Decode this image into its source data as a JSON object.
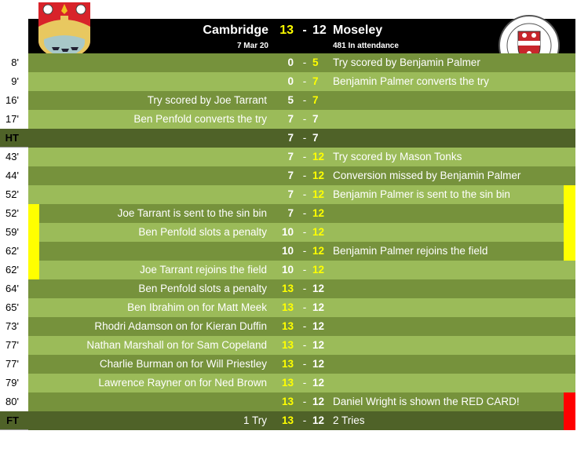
{
  "header": {
    "home_team": "Cambridge",
    "away_team": "Moseley",
    "home_score": "13",
    "away_score": "12",
    "dash": "-",
    "date": "7 Mar 20",
    "attendance": "481 In attendance",
    "home_logo": "Cambridge crest",
    "away_logo": "BIRMINGHAM MOSELEY RUGBY 1873"
  },
  "colors": {
    "dark": "#76923c",
    "light": "#9bbb59",
    "period": "#4f6228",
    "leader": "#ffff00",
    "yellow_card": "#ffff00",
    "red_card": "#ff0000"
  },
  "rows": [
    {
      "minute": "8'",
      "shade": "dark",
      "home_text": "",
      "home_score": "0",
      "away_score": "5",
      "away_text": "Try scored by Benjamin Palmer"
    },
    {
      "minute": "9'",
      "shade": "light",
      "home_text": "",
      "home_score": "0",
      "away_score": "7",
      "away_text": "Benjamin Palmer converts the try"
    },
    {
      "minute": "16'",
      "shade": "dark",
      "home_text": "Try scored by Joe Tarrant",
      "home_score": "5",
      "away_score": "7",
      "away_text": ""
    },
    {
      "minute": "17'",
      "shade": "light",
      "home_text": "Ben Penfold converts the try",
      "home_score": "7",
      "away_score": "7",
      "away_text": ""
    },
    {
      "minute": "HT",
      "shade": "period",
      "home_text": "",
      "home_score": "7",
      "away_score": "7",
      "away_text": ""
    },
    {
      "minute": "43'",
      "shade": "light",
      "home_text": "",
      "home_score": "7",
      "away_score": "12",
      "away_text": "Try scored by Mason Tonks"
    },
    {
      "minute": "44'",
      "shade": "dark",
      "home_text": "",
      "home_score": "7",
      "away_score": "12",
      "away_text": "Conversion missed by Benjamin Palmer"
    },
    {
      "minute": "52'",
      "shade": "light",
      "home_text": "",
      "home_score": "7",
      "away_score": "12",
      "away_text": "Benjamin Palmer is sent to the sin bin",
      "right_bar": "yellow"
    },
    {
      "minute": "52'",
      "shade": "dark",
      "home_text": "Joe Tarrant is sent to the sin bin",
      "home_score": "7",
      "away_score": "12",
      "away_text": "",
      "left_bar": "yellow",
      "right_bar": "yellow"
    },
    {
      "minute": "59'",
      "shade": "light",
      "home_text": "Ben Penfold slots a penalty",
      "home_score": "10",
      "away_score": "12",
      "away_text": "",
      "left_bar": "yellow",
      "right_bar": "yellow"
    },
    {
      "minute": "62'",
      "shade": "dark",
      "home_text": "",
      "home_score": "10",
      "away_score": "12",
      "away_text": "Benjamin Palmer rejoins the field",
      "left_bar": "yellow",
      "right_bar": "yellow"
    },
    {
      "minute": "62'",
      "shade": "light",
      "home_text": "Joe Tarrant rejoins the field",
      "home_score": "10",
      "away_score": "12",
      "away_text": "",
      "left_bar": "yellow"
    },
    {
      "minute": "64'",
      "shade": "dark",
      "home_text": "Ben Penfold slots a penalty",
      "home_score": "13",
      "away_score": "12",
      "away_text": ""
    },
    {
      "minute": "65'",
      "shade": "light",
      "home_text": "Ben Ibrahim on for Matt Meek",
      "home_score": "13",
      "away_score": "12",
      "away_text": ""
    },
    {
      "minute": "73'",
      "shade": "dark",
      "home_text": "Rhodri Adamson on for Kieran Duffin",
      "home_score": "13",
      "away_score": "12",
      "away_text": ""
    },
    {
      "minute": "77'",
      "shade": "light",
      "home_text": "Nathan Marshall on for Sam Copeland",
      "home_score": "13",
      "away_score": "12",
      "away_text": ""
    },
    {
      "minute": "77'",
      "shade": "dark",
      "home_text": "Charlie Burman on for Will Priestley",
      "home_score": "13",
      "away_score": "12",
      "away_text": ""
    },
    {
      "minute": "79'",
      "shade": "light",
      "home_text": "Lawrence Rayner on for Ned Brown",
      "home_score": "13",
      "away_score": "12",
      "away_text": ""
    },
    {
      "minute": "80'",
      "shade": "dark",
      "home_text": "",
      "home_score": "13",
      "away_score": "12",
      "away_text": "Daniel Wright is shown the RED CARD!",
      "right_bar": "red"
    },
    {
      "minute": "FT",
      "shade": "period",
      "home_text": "1 Try",
      "home_score": "13",
      "away_score": "12",
      "away_text": "2 Tries",
      "right_bar": "red"
    }
  ]
}
